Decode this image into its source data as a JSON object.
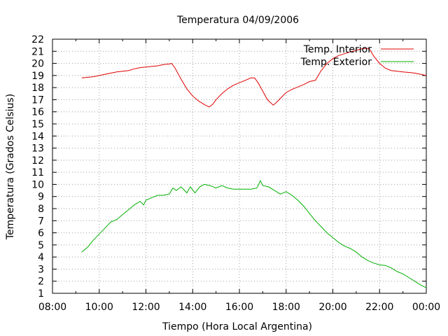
{
  "chart_data": {
    "type": "line",
    "title": "Temperatura 04/09/2006",
    "xlabel": "Tiempo (Hora Local Argentina)",
    "ylabel": "Temperatura (Grados Celsius)",
    "xlim": [
      8,
      24
    ],
    "ylim": [
      1,
      22
    ],
    "x_tick_labels": [
      "08:00",
      "10:00",
      "12:00",
      "14:00",
      "16:00",
      "18:00",
      "20:00",
      "22:00",
      "00:00"
    ],
    "y_tick_labels": [
      "1",
      "2",
      "3",
      "4",
      "5",
      "6",
      "7",
      "8",
      "9",
      "10",
      "11",
      "12",
      "13",
      "14",
      "15",
      "16",
      "17",
      "18",
      "19",
      "20",
      "21",
      "22"
    ],
    "grid": true,
    "legend_position": "top-right",
    "series": [
      {
        "name": "Temp. Interior",
        "color": "#e00000",
        "points": [
          [
            9.25,
            18.8
          ],
          [
            9.5,
            18.85
          ],
          [
            9.75,
            18.9
          ],
          [
            10.0,
            19.0
          ],
          [
            10.25,
            19.1
          ],
          [
            10.5,
            19.2
          ],
          [
            10.75,
            19.3
          ],
          [
            11.0,
            19.35
          ],
          [
            11.25,
            19.4
          ],
          [
            11.5,
            19.55
          ],
          [
            11.75,
            19.65
          ],
          [
            12.0,
            19.7
          ],
          [
            12.25,
            19.75
          ],
          [
            12.5,
            19.8
          ],
          [
            12.75,
            19.9
          ],
          [
            13.0,
            19.95
          ],
          [
            13.1,
            20.0
          ],
          [
            13.25,
            19.6
          ],
          [
            13.5,
            18.7
          ],
          [
            13.75,
            17.9
          ],
          [
            14.0,
            17.3
          ],
          [
            14.25,
            16.9
          ],
          [
            14.5,
            16.6
          ],
          [
            14.7,
            16.4
          ],
          [
            14.85,
            16.6
          ],
          [
            15.0,
            17.0
          ],
          [
            15.25,
            17.5
          ],
          [
            15.5,
            17.9
          ],
          [
            15.75,
            18.2
          ],
          [
            16.0,
            18.4
          ],
          [
            16.25,
            18.6
          ],
          [
            16.5,
            18.8
          ],
          [
            16.65,
            18.8
          ],
          [
            16.8,
            18.4
          ],
          [
            17.0,
            17.7
          ],
          [
            17.2,
            17.0
          ],
          [
            17.45,
            16.55
          ],
          [
            17.6,
            16.8
          ],
          [
            17.8,
            17.2
          ],
          [
            18.0,
            17.6
          ],
          [
            18.25,
            17.85
          ],
          [
            18.5,
            18.05
          ],
          [
            18.75,
            18.25
          ],
          [
            19.0,
            18.5
          ],
          [
            19.25,
            18.6
          ],
          [
            19.5,
            19.4
          ],
          [
            19.75,
            20.0
          ],
          [
            20.0,
            20.4
          ],
          [
            20.25,
            20.65
          ],
          [
            20.5,
            20.8
          ],
          [
            20.75,
            20.95
          ],
          [
            21.0,
            21.1
          ],
          [
            21.25,
            21.2
          ],
          [
            21.5,
            21.25
          ],
          [
            21.6,
            21.1
          ],
          [
            21.75,
            20.6
          ],
          [
            22.0,
            20.0
          ],
          [
            22.25,
            19.6
          ],
          [
            22.5,
            19.4
          ],
          [
            22.75,
            19.35
          ],
          [
            23.0,
            19.3
          ],
          [
            23.25,
            19.25
          ],
          [
            23.5,
            19.2
          ],
          [
            23.75,
            19.1
          ],
          [
            24.0,
            19.0
          ]
        ]
      },
      {
        "name": "Temp. Exterior",
        "color": "#00b000",
        "points": [
          [
            9.25,
            4.4
          ],
          [
            9.5,
            4.8
          ],
          [
            9.75,
            5.4
          ],
          [
            10.0,
            5.9
          ],
          [
            10.25,
            6.4
          ],
          [
            10.5,
            6.9
          ],
          [
            10.75,
            7.1
          ],
          [
            11.0,
            7.5
          ],
          [
            11.25,
            7.9
          ],
          [
            11.5,
            8.3
          ],
          [
            11.75,
            8.6
          ],
          [
            11.9,
            8.3
          ],
          [
            12.0,
            8.7
          ],
          [
            12.25,
            8.9
          ],
          [
            12.5,
            9.1
          ],
          [
            12.75,
            9.1
          ],
          [
            13.0,
            9.2
          ],
          [
            13.15,
            9.7
          ],
          [
            13.3,
            9.5
          ],
          [
            13.5,
            9.8
          ],
          [
            13.75,
            9.3
          ],
          [
            13.9,
            9.8
          ],
          [
            14.1,
            9.3
          ],
          [
            14.3,
            9.8
          ],
          [
            14.5,
            10.0
          ],
          [
            14.75,
            9.9
          ],
          [
            15.0,
            9.7
          ],
          [
            15.25,
            9.9
          ],
          [
            15.5,
            9.7
          ],
          [
            15.75,
            9.6
          ],
          [
            16.0,
            9.6
          ],
          [
            16.25,
            9.6
          ],
          [
            16.5,
            9.6
          ],
          [
            16.75,
            9.7
          ],
          [
            16.9,
            10.3
          ],
          [
            17.0,
            9.9
          ],
          [
            17.25,
            9.8
          ],
          [
            17.5,
            9.5
          ],
          [
            17.75,
            9.2
          ],
          [
            18.0,
            9.4
          ],
          [
            18.25,
            9.1
          ],
          [
            18.5,
            8.7
          ],
          [
            18.75,
            8.2
          ],
          [
            19.0,
            7.6
          ],
          [
            19.25,
            7.0
          ],
          [
            19.5,
            6.5
          ],
          [
            19.75,
            6.0
          ],
          [
            20.0,
            5.6
          ],
          [
            20.25,
            5.2
          ],
          [
            20.5,
            4.9
          ],
          [
            20.75,
            4.7
          ],
          [
            21.0,
            4.4
          ],
          [
            21.25,
            4.0
          ],
          [
            21.5,
            3.7
          ],
          [
            21.75,
            3.5
          ],
          [
            22.0,
            3.35
          ],
          [
            22.25,
            3.3
          ],
          [
            22.5,
            3.1
          ],
          [
            22.75,
            2.8
          ],
          [
            23.0,
            2.6
          ],
          [
            23.25,
            2.3
          ],
          [
            23.5,
            2.0
          ],
          [
            23.75,
            1.7
          ],
          [
            24.0,
            1.45
          ]
        ]
      }
    ]
  }
}
